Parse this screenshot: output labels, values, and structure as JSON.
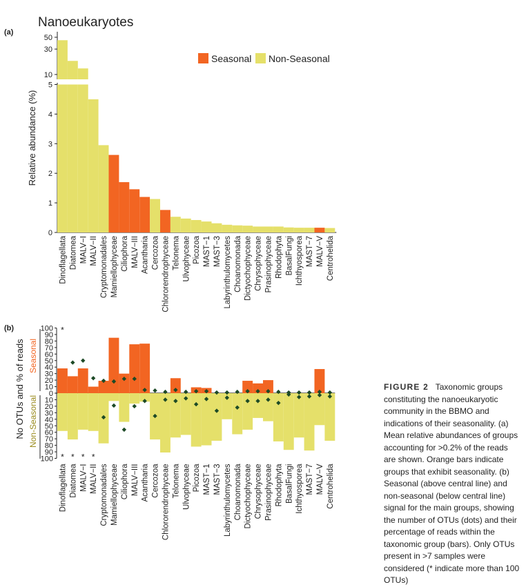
{
  "colors": {
    "seasonal": "#f26522",
    "nonseasonal": "#e5e06a",
    "dot": "#1d4a26",
    "seasonal_text": "#f26522",
    "nonseasonal_text": "#9a8b1e"
  },
  "title": "Nanoeukaryotes",
  "panel_a_label": "(a)",
  "panel_b_label": "(b)",
  "legend": {
    "seasonal": "Seasonal",
    "nonseasonal": "Non-Seasonal"
  },
  "chart_data": [
    {
      "type": "bar",
      "title": "Nanoeukaryotes",
      "ylabel": "Relative abundance (%)",
      "broken_axis": true,
      "ylim_lower": [
        0,
        5
      ],
      "ylim_upper": [
        5,
        50
      ],
      "upper_ticks": [
        "10",
        "30",
        "50"
      ],
      "lower_ticks": [
        "0",
        "1",
        "2",
        "3",
        "4",
        "5"
      ],
      "categories": [
        "Dinoflagellata",
        "Diatomea",
        "MALV−I",
        "MALV−II",
        "Cryptomonadales",
        "Mamiellophyceae",
        "Ciliophora",
        "MALV−III",
        "Acantharia",
        "Cercozoa",
        "Chlororendrophyceae",
        "Telonema",
        "Ulvophyceae",
        "Picozoa",
        "MAST−1",
        "MAST−3",
        "Labyrinthulomycetes",
        "Choanomonada",
        "Dictyochophyceae",
        "Chrysophyceae",
        "Prasinophyceae",
        "Rhodophyta",
        "BasalFungi",
        "Ichthyosporea",
        "MAST−7",
        "MALV−V",
        "Centrohelida"
      ],
      "values": [
        44,
        18,
        13,
        4.5,
        2.95,
        2.62,
        1.7,
        1.46,
        1.2,
        1.13,
        0.76,
        0.53,
        0.47,
        0.42,
        0.37,
        0.31,
        0.26,
        0.24,
        0.23,
        0.2,
        0.2,
        0.2,
        0.17,
        0.16,
        0.16,
        0.16,
        0.15
      ],
      "seasonal": [
        false,
        false,
        false,
        false,
        false,
        true,
        true,
        true,
        true,
        false,
        true,
        false,
        false,
        false,
        false,
        false,
        false,
        false,
        false,
        false,
        false,
        false,
        false,
        false,
        false,
        true,
        false
      ],
      "legend_position": "top-right"
    },
    {
      "type": "bar",
      "ylabel": "No OTUs and % of reads",
      "seasonal_label": "Seasonal",
      "nonseasonal_label": "Non-Seasonal",
      "ylim": [
        -100,
        100
      ],
      "ticks": [
        "100",
        "90",
        "80",
        "70",
        "60",
        "50",
        "40",
        "30",
        "20",
        "10",
        "0",
        "10",
        "20",
        "30",
        "40",
        "50",
        "60",
        "70",
        "80",
        "90",
        "100"
      ],
      "categories": [
        "Dinoflagellata",
        "Diatomea",
        "MALV−I",
        "MALV−II",
        "Cryptomonadales",
        "Mamiellophyceae",
        "Ciliophora",
        "MALV−III",
        "Acantharia",
        "Cercozoa",
        "Chlororendrophyceae",
        "Telonema",
        "Ulvophyceae",
        "Picozoa",
        "MAST−1",
        "MAST−3",
        "Labyrinthulomycetes",
        "Choanomonada",
        "Dictyochophyceae",
        "Chrysophyceae",
        "Prasinophyceae",
        "Rhodophyta",
        "BasalFungi",
        "Ichthyosporea",
        "MAST−7",
        "MALV−V",
        "Centrohelida"
      ],
      "seasonal_pct": [
        38,
        26,
        38,
        10,
        19,
        85,
        30,
        75,
        76,
        0,
        0,
        23,
        0,
        9,
        8,
        0,
        0,
        0,
        19,
        15,
        20,
        0,
        0,
        0,
        0,
        37,
        0
      ],
      "nonseasonal_pct": [
        58,
        71,
        56,
        58,
        77,
        12,
        44,
        16,
        13,
        71,
        91,
        68,
        64,
        82,
        80,
        73,
        40,
        63,
        56,
        38,
        43,
        74,
        87,
        68,
        88,
        49,
        73
      ],
      "seasonal_otus": [
        100,
        47,
        50,
        23,
        19,
        18,
        22,
        22,
        5,
        4,
        2,
        5,
        2,
        3,
        3,
        1,
        1,
        2,
        3,
        3,
        3,
        2,
        1,
        1,
        1,
        2,
        1
      ],
      "nonseasonal_otus": [
        100,
        100,
        100,
        100,
        37,
        19,
        56,
        20,
        12,
        35,
        10,
        12,
        8,
        17,
        9,
        27,
        7,
        22,
        12,
        12,
        10,
        15,
        2,
        6,
        5,
        3,
        5
      ],
      "star_labels": [
        "*",
        "*",
        "*",
        "*",
        "*"
      ]
    }
  ],
  "caption": {
    "head": "FIGURE 2",
    "text": "Taxonomic groups constituting the nanoeukaryotic community in the BBMO and indications of their seasonality. (a) Mean relative abundances of groups accounting for >0.2% of the reads are shown. Orange bars indicate groups that exhibit seasonality. (b) Seasonal (above central line) and non-seasonal (below central line) signal for the main groups, showing the number of OTUs (dots) and their percentage of reads within the taxonomic group (bars). Only OTUs present in >7 samples were considered (* indicate more than 100 OTUs)"
  }
}
